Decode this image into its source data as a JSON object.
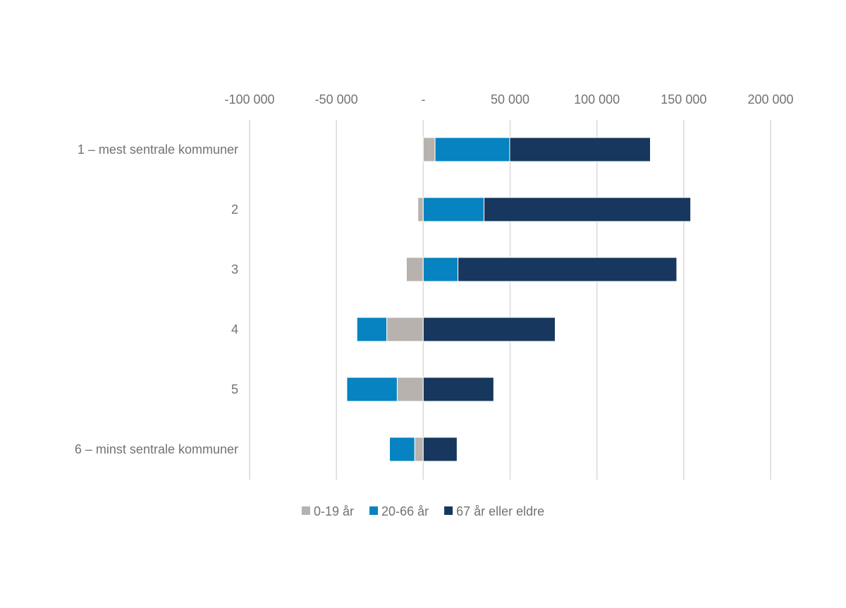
{
  "chart_data": {
    "type": "bar",
    "orientation": "horizontal",
    "stacked": true,
    "categories": [
      "1 – mest sentrale kommuner",
      "2",
      "3",
      "4",
      "5",
      "6 – minst sentrale kommuner"
    ],
    "series": [
      {
        "name": "0-19 år",
        "color": "#b7b2ae",
        "values": [
          6800,
          -3100,
          -9700,
          -21000,
          -15000,
          -4900
        ]
      },
      {
        "name": "20-66 år",
        "color": "#0683c0",
        "values": [
          43000,
          35000,
          20000,
          -17200,
          -29000,
          -14500
        ]
      },
      {
        "name": "67 år eller eldre",
        "color": "#17375e",
        "values": [
          81000,
          119000,
          126000,
          76000,
          40600,
          19500
        ]
      }
    ],
    "xlim": [
      -100000,
      200000
    ],
    "xticks": [
      -100000,
      -50000,
      0,
      50000,
      100000,
      150000,
      200000
    ],
    "xtick_labels": [
      "-100 000",
      "-50 000",
      "-",
      "50 000",
      "100 000",
      "150 000",
      "200 000"
    ],
    "x_axis_position": "top",
    "grid": "vertical",
    "legend": "bottom",
    "title": "",
    "xlabel": "",
    "ylabel": ""
  }
}
